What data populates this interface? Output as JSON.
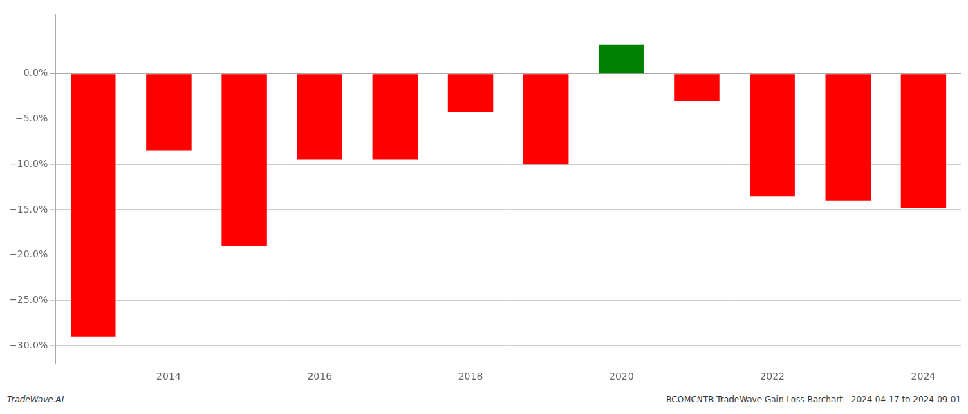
{
  "chart_data": {
    "type": "bar",
    "categories": [
      null,
      "2014",
      null,
      "2016",
      null,
      "2018",
      null,
      "2020",
      null,
      "2022",
      null,
      "2024"
    ],
    "values": [
      -0.29,
      -0.085,
      -0.19,
      -0.095,
      -0.095,
      -0.042,
      -0.1,
      0.032,
      -0.03,
      -0.135,
      -0.14,
      -0.148
    ],
    "colors": [
      "#ff0000",
      "#ff0000",
      "#ff0000",
      "#ff0000",
      "#ff0000",
      "#ff0000",
      "#ff0000",
      "#008000",
      "#ff0000",
      "#ff0000",
      "#ff0000",
      "#ff0000"
    ],
    "ylim": [
      -0.32,
      0.065
    ],
    "yticks": [
      {
        "value": 0.0,
        "label": "0.0%"
      },
      {
        "value": -0.05,
        "label": "−5.0%"
      },
      {
        "value": -0.1,
        "label": "−10.0%"
      },
      {
        "value": -0.15,
        "label": "−15.0%"
      },
      {
        "value": -0.2,
        "label": "−20.0%"
      },
      {
        "value": -0.25,
        "label": "−25.0%"
      },
      {
        "value": -0.3,
        "label": "−30.0%"
      }
    ],
    "grid": true,
    "annotations": [
      "TradeWave.AI",
      "BCOMCNTR TradeWave Gain Loss Barchart - 2024-04-17 to 2024-09-01"
    ]
  }
}
